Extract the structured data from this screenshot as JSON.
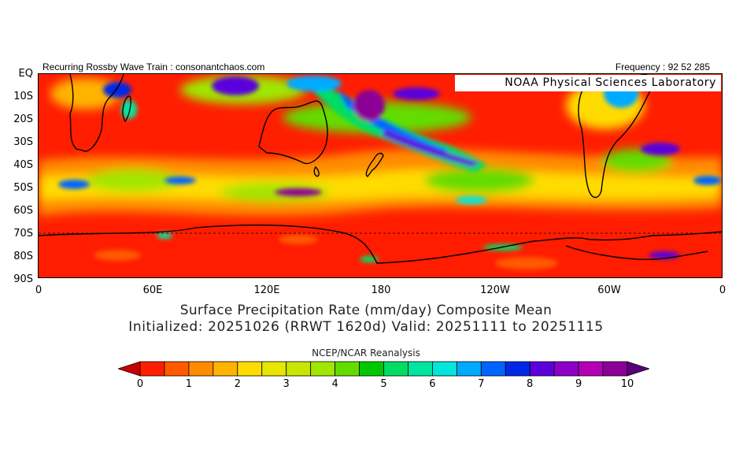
{
  "header": {
    "left_text": "Recurring Rossby Wave Train : consonantchaos.com",
    "right_text": "Frequency : 92 52 285"
  },
  "map": {
    "lab_label": "NOAA Physical Sciences Laboratory",
    "lat_labels": [
      "EQ",
      "10S",
      "20S",
      "30S",
      "40S",
      "50S",
      "60S",
      "70S",
      "80S",
      "90S"
    ],
    "lon_labels": [
      "0",
      "60E",
      "120E",
      "180",
      "120W",
      "60W",
      "0"
    ],
    "region": "Southern Hemisphere, 0 to 90S, 0 to 360 longitude"
  },
  "titles": {
    "line1": "Surface Precipitation Rate (mm/day) Composite Mean",
    "line2": "Initialized: 20251026 (RRWT 1620d) Valid: 20251111 to 20251115",
    "source": "NCEP/NCAR Reanalysis"
  },
  "colorbar": {
    "labels": [
      "0",
      "1",
      "2",
      "3",
      "4",
      "5",
      "6",
      "7",
      "8",
      "9",
      "10"
    ],
    "colors": [
      "#c80000",
      "#ff1e00",
      "#ff5a00",
      "#ff8c00",
      "#ffb400",
      "#ffdc00",
      "#e6e600",
      "#c8e600",
      "#a0e600",
      "#64dc00",
      "#00c800",
      "#00dc64",
      "#00e6a0",
      "#00e6dc",
      "#00aaff",
      "#0064ff",
      "#0028e6",
      "#5a00dc",
      "#8c00c8",
      "#b400b4",
      "#8c0096",
      "#5a0078"
    ]
  }
}
